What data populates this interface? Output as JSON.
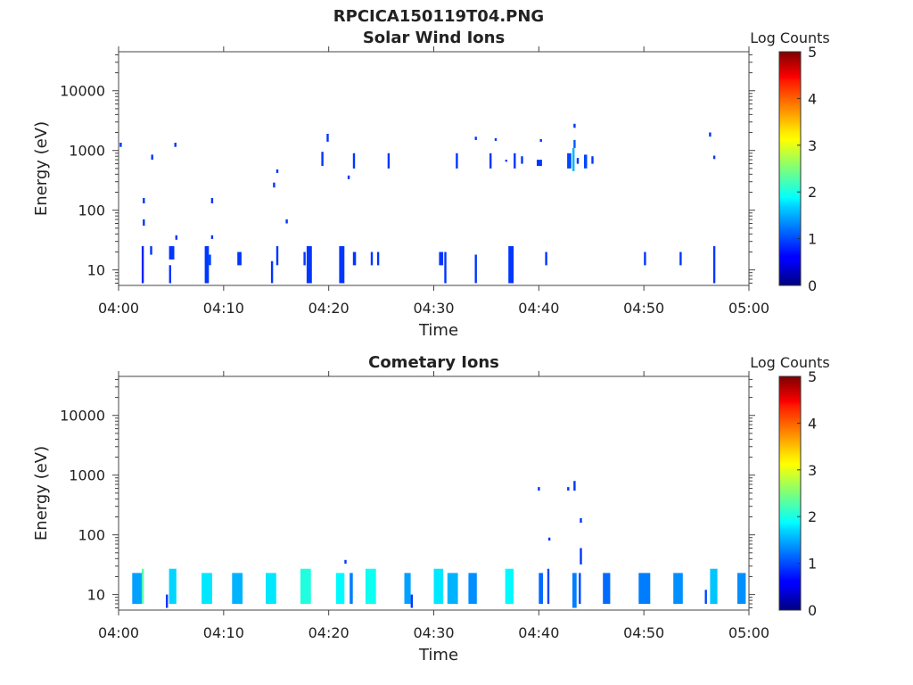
{
  "figure": {
    "main_title": "RPCICA150119T04.PNG"
  },
  "chart_data": [
    {
      "type": "heatmap",
      "title": "Solar Wind Ions",
      "xlabel": "Time",
      "ylabel": "Energy (eV)",
      "x_ticks": [
        "04:00",
        "04:10",
        "04:20",
        "04:30",
        "04:40",
        "04:50",
        "05:00"
      ],
      "x_range_min": [
        0,
        60
      ],
      "y_ticks": [
        "10",
        "100",
        "1000",
        "10000"
      ],
      "y_scale": "log",
      "y_range_eV": [
        5.5,
        45000
      ],
      "colorbar": {
        "label": "Log Counts",
        "ticks": [
          "0",
          "1",
          "2",
          "3",
          "4",
          "5"
        ],
        "range": [
          0,
          5
        ],
        "colormap": "jet"
      },
      "cells": [
        [
          2.2,
          2.4,
          6,
          25,
          0.2
        ],
        [
          2.3,
          2.5,
          55,
          70,
          0.3
        ],
        [
          2.3,
          2.5,
          130,
          160,
          0.3
        ],
        [
          3.0,
          3.2,
          18,
          25,
          0.3
        ],
        [
          3.1,
          3.3,
          700,
          850,
          0.3
        ],
        [
          4.8,
          5.3,
          15,
          25,
          0.3
        ],
        [
          4.8,
          5.0,
          6,
          12,
          0.3
        ],
        [
          5.3,
          5.5,
          1150,
          1350,
          0.3
        ],
        [
          5.4,
          5.6,
          32,
          38,
          0.3
        ],
        [
          8.2,
          8.6,
          6,
          25,
          0.3
        ],
        [
          8.5,
          8.8,
          12,
          18,
          0.4
        ],
        [
          8.8,
          9.0,
          130,
          160,
          0.3
        ],
        [
          8.8,
          9.0,
          33,
          38,
          0.3
        ],
        [
          11.3,
          11.7,
          12,
          20,
          0.3
        ],
        [
          14.5,
          14.7,
          6,
          14,
          0.3
        ],
        [
          14.7,
          14.9,
          240,
          290,
          0.3
        ],
        [
          15.0,
          15.2,
          420,
          480,
          0.3
        ],
        [
          15.0,
          15.2,
          12,
          25,
          0.3
        ],
        [
          15.9,
          16.1,
          60,
          70,
          0.3
        ],
        [
          17.6,
          17.8,
          12,
          20,
          0.3
        ],
        [
          17.9,
          18.4,
          6,
          25,
          0.3
        ],
        [
          19.3,
          19.5,
          550,
          950,
          0.3
        ],
        [
          19.8,
          20.0,
          1400,
          1900,
          0.3
        ],
        [
          21.0,
          21.5,
          6,
          25,
          0.3
        ],
        [
          21.8,
          22.0,
          330,
          380,
          0.3
        ],
        [
          22.3,
          22.5,
          500,
          900,
          0.3
        ],
        [
          22.3,
          22.6,
          12,
          20,
          0.3
        ],
        [
          24.0,
          24.2,
          12,
          20,
          0.3
        ],
        [
          24.6,
          24.8,
          12,
          20,
          0.3
        ],
        [
          25.6,
          25.8,
          500,
          900,
          0.3
        ],
        [
          30.5,
          30.9,
          12,
          20,
          0.3
        ],
        [
          31.0,
          31.2,
          6,
          20,
          0.3
        ],
        [
          32.1,
          32.3,
          500,
          900,
          0.3
        ],
        [
          33.9,
          34.1,
          6,
          18,
          0.3
        ],
        [
          33.9,
          34.1,
          1500,
          1700,
          0.3
        ],
        [
          35.3,
          35.5,
          500,
          900,
          0.3
        ],
        [
          35.8,
          36.0,
          1450,
          1600,
          0.3
        ],
        [
          36.8,
          37.0,
          650,
          700,
          0.3
        ],
        [
          37.1,
          37.6,
          6,
          25,
          0.3
        ],
        [
          37.6,
          37.8,
          500,
          900,
          0.3
        ],
        [
          38.3,
          38.5,
          600,
          800,
          0.3
        ],
        [
          39.8,
          40.3,
          550,
          700,
          0.3
        ],
        [
          40.1,
          40.3,
          1400,
          1550,
          0.3
        ],
        [
          40.6,
          40.8,
          12,
          20,
          0.3
        ],
        [
          42.7,
          43.1,
          500,
          900,
          0.4
        ],
        [
          43.2,
          43.4,
          450,
          1100,
          1.0
        ],
        [
          43.3,
          43.5,
          1100,
          1500,
          0.5
        ],
        [
          43.3,
          43.5,
          2400,
          2800,
          0.3
        ],
        [
          43.6,
          43.8,
          600,
          750,
          0.3
        ],
        [
          44.3,
          44.6,
          500,
          850,
          0.4
        ],
        [
          45.0,
          45.2,
          600,
          800,
          0.3
        ],
        [
          50.0,
          50.2,
          12,
          20,
          0.3
        ],
        [
          53.4,
          53.6,
          12,
          20,
          0.3
        ],
        [
          56.2,
          56.4,
          1700,
          2000,
          0.3
        ],
        [
          56.6,
          56.8,
          6,
          25,
          0.3
        ],
        [
          56.6,
          56.8,
          720,
          820,
          0.3
        ],
        [
          0.1,
          0.3,
          1150,
          1350,
          0.3
        ]
      ]
    },
    {
      "type": "heatmap",
      "title": "Cometary Ions",
      "xlabel": "Time",
      "ylabel": "Energy (eV)",
      "x_ticks": [
        "04:00",
        "04:10",
        "04:20",
        "04:30",
        "04:40",
        "04:50",
        "05:00"
      ],
      "x_range_min": [
        0,
        60
      ],
      "y_ticks": [
        "10",
        "100",
        "1000",
        "10000"
      ],
      "y_scale": "log",
      "y_range_eV": [
        5.5,
        45000
      ],
      "colorbar": {
        "label": "Log Counts",
        "ticks": [
          "0",
          "1",
          "2",
          "3",
          "4",
          "5"
        ],
        "range": [
          0,
          5
        ],
        "colormap": "jet"
      },
      "cells": [
        [
          1.3,
          2.3,
          7,
          23,
          0.9
        ],
        [
          2.2,
          2.4,
          7,
          27,
          1.9
        ],
        [
          4.5,
          4.7,
          6,
          10,
          0.3
        ],
        [
          4.8,
          5.5,
          7,
          27,
          1.2
        ],
        [
          7.9,
          8.9,
          7,
          23,
          1.3
        ],
        [
          10.8,
          11.8,
          7,
          23,
          1.0
        ],
        [
          14.0,
          15.0,
          7,
          23,
          1.3
        ],
        [
          17.3,
          18.3,
          7,
          27,
          1.6
        ],
        [
          20.7,
          21.5,
          7,
          23,
          1.4
        ],
        [
          21.5,
          21.7,
          33,
          38,
          0.3
        ],
        [
          22.0,
          22.3,
          7,
          23,
          0.7
        ],
        [
          23.5,
          24.5,
          7,
          27,
          1.5
        ],
        [
          27.2,
          27.8,
          7,
          23,
          0.9
        ],
        [
          27.8,
          28.0,
          6,
          10,
          0.3
        ],
        [
          30.0,
          30.9,
          7,
          27,
          1.3
        ],
        [
          31.3,
          32.3,
          7,
          23,
          1.0
        ],
        [
          33.3,
          34.1,
          7,
          23,
          0.8
        ],
        [
          36.8,
          37.6,
          7,
          27,
          1.4
        ],
        [
          40.0,
          40.4,
          7,
          23,
          0.6
        ],
        [
          40.8,
          41.0,
          7,
          27,
          0.4
        ],
        [
          39.9,
          40.1,
          550,
          630,
          0.3
        ],
        [
          40.9,
          41.1,
          80,
          90,
          0.3
        ],
        [
          42.7,
          42.9,
          550,
          630,
          0.3
        ],
        [
          43.3,
          43.5,
          550,
          800,
          0.3
        ],
        [
          43.2,
          43.6,
          6,
          23,
          0.7
        ],
        [
          43.8,
          44.0,
          7,
          23,
          0.4
        ],
        [
          43.9,
          44.1,
          160,
          190,
          0.3
        ],
        [
          43.9,
          44.1,
          32,
          60,
          0.3
        ],
        [
          46.1,
          46.8,
          7,
          23,
          0.6
        ],
        [
          49.5,
          50.6,
          7,
          23,
          0.7
        ],
        [
          52.8,
          53.7,
          7,
          23,
          0.8
        ],
        [
          55.8,
          56.0,
          7,
          12,
          0.4
        ],
        [
          56.3,
          57.0,
          7,
          27,
          1.1
        ],
        [
          58.9,
          59.7,
          7,
          23,
          0.8
        ]
      ]
    }
  ]
}
